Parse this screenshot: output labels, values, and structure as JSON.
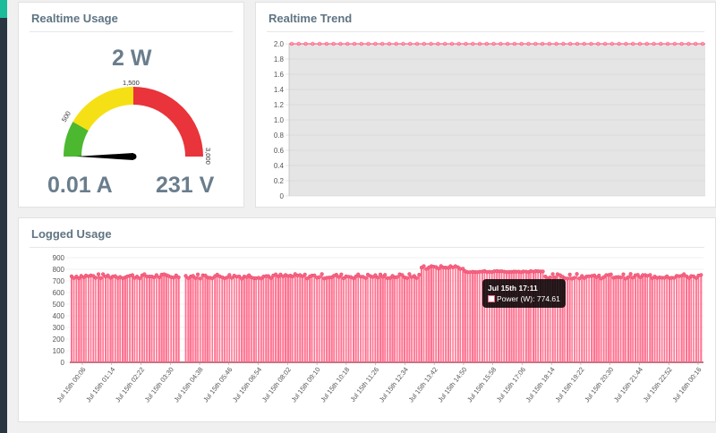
{
  "realtime": {
    "title": "Realtime Usage",
    "power": "2 W",
    "current": "0.01 A",
    "voltage": "231 V",
    "gauge": {
      "min": 0,
      "max": 3000,
      "value_w": 2,
      "labels": [
        "500",
        "1,500",
        "3,000"
      ],
      "bands": [
        {
          "from": 0,
          "to": 500,
          "color": "#4cb830"
        },
        {
          "from": 500,
          "to": 1500,
          "color": "#f5e015"
        },
        {
          "from": 1500,
          "to": 3000,
          "color": "#e8343a"
        }
      ]
    }
  },
  "trend": {
    "title": "Realtime Trend",
    "chart_data": {
      "type": "line",
      "y_ticks": [
        "0",
        "0.2",
        "0.4",
        "0.6",
        "0.8",
        "1.0",
        "1.2",
        "1.4",
        "1.6",
        "1.8",
        "2.0"
      ],
      "ylim": [
        0,
        2.0
      ],
      "series": [
        {
          "values": [
            2,
            2,
            2,
            2,
            2,
            2,
            2,
            2,
            2,
            2,
            2,
            2,
            2,
            2,
            2,
            2,
            2,
            2,
            2,
            2,
            2,
            2,
            2,
            2,
            2,
            2,
            2,
            2,
            2,
            2,
            2,
            2,
            2,
            2,
            2,
            2,
            2,
            2,
            2,
            2,
            2,
            2,
            2,
            2,
            2,
            2,
            2,
            2,
            2,
            2,
            2,
            2,
            2,
            2,
            2,
            2,
            2,
            2,
            2,
            2
          ]
        }
      ],
      "line_color": "#ff6384",
      "fill_color": "#e5e5e5"
    }
  },
  "logged": {
    "title": "Logged Usage",
    "chart_data": {
      "type": "area",
      "y_ticks": [
        "0",
        "100",
        "200",
        "300",
        "400",
        "500",
        "600",
        "700",
        "800",
        "900"
      ],
      "ylim": [
        0,
        900
      ],
      "x_tick_labels": [
        "Jul 15th 00:06",
        "Jul 15th 01:14",
        "Jul 15th 02:22",
        "Jul 15th 03:30",
        "Jul 15th 04:38",
        "Jul 15th 05:46",
        "Jul 15th 06:54",
        "Jul 15th 08:02",
        "Jul 15th 09:10",
        "Jul 15th 10:18",
        "Jul 15th 11:26",
        "Jul 15th 12:34",
        "Jul 15th 13:42",
        "Jul 15th 14:50",
        "Jul 15th 15:58",
        "Jul 15th 17:06",
        "Jul 15th 18:14",
        "Jul 15th 19:22",
        "Jul 15th 20:30",
        "Jul 15th 21:44",
        "Jul 15th 22:52",
        "Jul 16th 00:16"
      ],
      "series": [
        {
          "name": "Power (W)",
          "high_level": 740,
          "peak": 830,
          "low_level": 0
        }
      ],
      "color": "#ff6384"
    },
    "tooltip": {
      "title": "Jul 15th 17:11",
      "label": "Power (W): 774.61"
    }
  }
}
